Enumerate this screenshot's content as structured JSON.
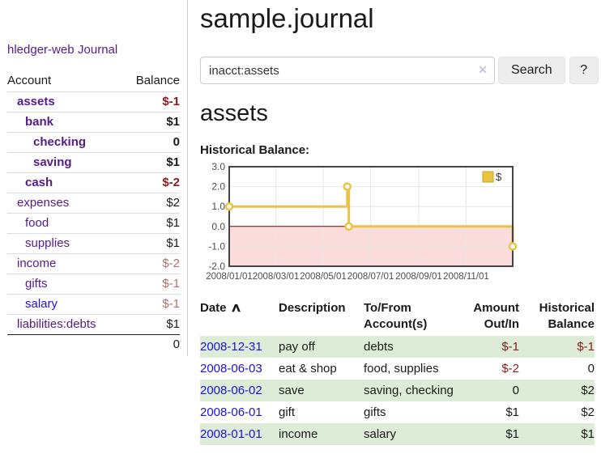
{
  "colors": {
    "link_purple": "#551a8b",
    "link_blue": "#1d12d8",
    "negative_red": "#8b1a1a",
    "negative_soft": "#b36f6f",
    "row_green": "#ddecd7",
    "chart_gold": "#edc240",
    "chart_gold_border": "#c9a02e",
    "chart_negative_fill": "#fbdcdc",
    "chart_zero_line": "#8b0000",
    "chart_grid": "#e7e7e7",
    "chart_border": "#444444"
  },
  "sidebar": {
    "app_title": "hledger-web",
    "journal_link": "Journal",
    "accounts": {
      "col_account": "Account",
      "col_balance": "Balance",
      "rows": [
        {
          "account": "assets",
          "depth": 1,
          "bold": true,
          "balance": "$-1",
          "neg": "strong"
        },
        {
          "account": "bank",
          "depth": 2,
          "bold": true,
          "balance": "$1"
        },
        {
          "account": "checking",
          "depth": 3,
          "bold": true,
          "balance": "0"
        },
        {
          "account": "saving",
          "depth": 3,
          "bold": true,
          "balance": "$1"
        },
        {
          "account": "cash",
          "depth": 2,
          "bold": true,
          "balance": "$-2",
          "neg": "strong"
        },
        {
          "account": "expenses",
          "depth": 1,
          "balance": "$2"
        },
        {
          "account": "food",
          "depth": 2,
          "balance": "$1"
        },
        {
          "account": "supplies",
          "depth": 2,
          "balance": "$1"
        },
        {
          "account": "income",
          "depth": 1,
          "balance": "$-2",
          "neg": "soft"
        },
        {
          "account": "gifts",
          "depth": 2,
          "balance": "$-1",
          "neg": "soft"
        },
        {
          "account": "salary",
          "depth": 2,
          "balance": "$-1",
          "neg": "soft",
          "link": "blue"
        },
        {
          "account": "liabilities:debts",
          "depth": 1,
          "balance": "$1"
        }
      ],
      "total": "0"
    }
  },
  "main": {
    "page_title": "sample.journal",
    "search": {
      "value": "inacct:assets",
      "clear_icon": "✕",
      "search_button": "Search",
      "help_button": "?"
    },
    "account_heading": "assets",
    "chart_label": "Historical Balance:"
  },
  "chart_data": {
    "type": "line",
    "title": "Historical Balance:",
    "step": true,
    "series": [
      {
        "name": "$",
        "points": [
          [
            "2008-01-01",
            1
          ],
          [
            "2008-06-01",
            2
          ],
          [
            "2008-06-03",
            0
          ],
          [
            "2008-12-31",
            -1
          ]
        ]
      }
    ],
    "x_range": [
      "2008-01-01",
      "2008-12-31"
    ],
    "x_ticks": [
      "2008/01/01",
      "2008/03/01",
      "2008/05/01",
      "2008/07/01",
      "2008/09/01",
      "2008/11/01"
    ],
    "y_ticks": [
      3.0,
      2.0,
      1.0,
      0.0,
      -1.0,
      -2.0
    ],
    "ylim": [
      -2,
      3
    ],
    "grid": true,
    "legend_position": "top-right",
    "legend_label": "$"
  },
  "register": {
    "headers": {
      "date": "Date",
      "sort_icon": "∧",
      "description": "Description",
      "tofrom": "To/From Account(s)",
      "amount": "Amount Out/In",
      "balance": "Historical Balance"
    },
    "rows": [
      {
        "date": "2008-12-31",
        "description": "pay off",
        "accounts": "debts",
        "amount": "$-1",
        "amount_neg": true,
        "balance": "$-1",
        "balance_neg": true
      },
      {
        "date": "2008-06-03",
        "description": "eat & shop",
        "accounts": "food, supplies",
        "amount": "$-2",
        "amount_neg": true,
        "balance": "0"
      },
      {
        "date": "2008-06-02",
        "description": "save",
        "accounts": "saving, checking",
        "amount": "0",
        "balance": "$2"
      },
      {
        "date": "2008-06-01",
        "description": "gift",
        "accounts": "gifts",
        "amount": "$1",
        "balance": "$2"
      },
      {
        "date": "2008-01-01",
        "description": "income",
        "accounts": "salary",
        "amount": "$1",
        "balance": "$1"
      }
    ]
  }
}
